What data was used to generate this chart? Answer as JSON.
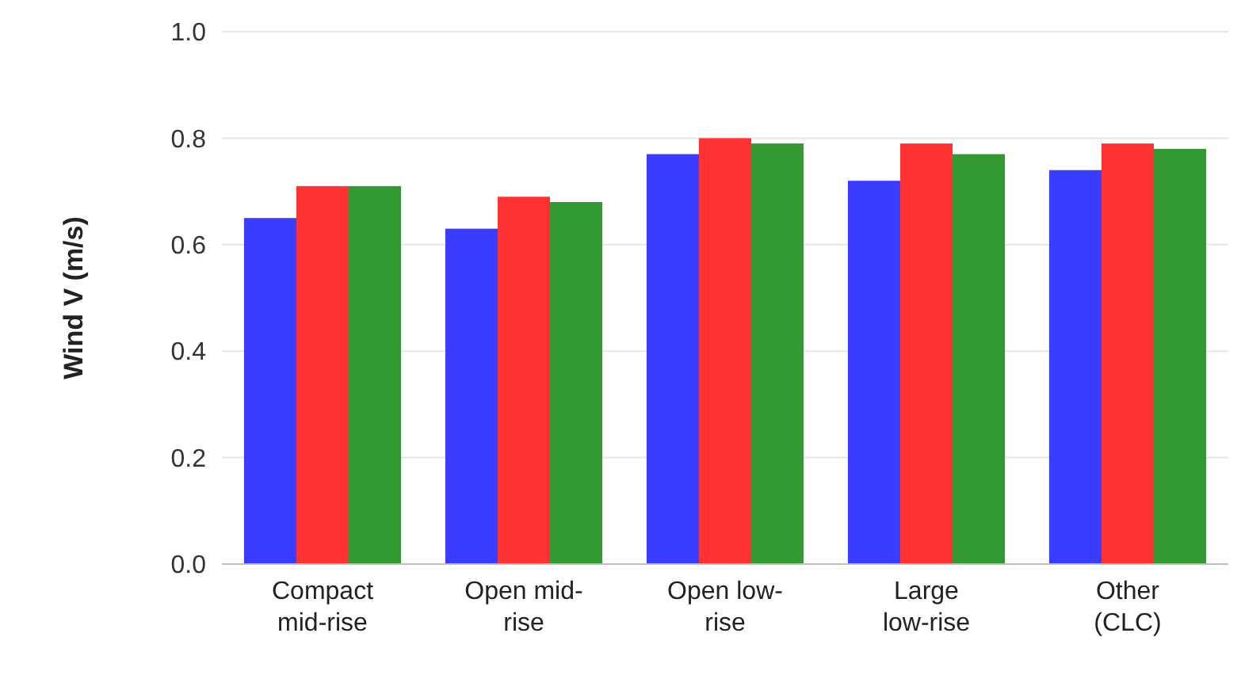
{
  "chart_data": {
    "type": "bar",
    "ylabel": "Wind V (m/s)",
    "categories": [
      "Compact mid-rise",
      "Open mid-rise",
      "Open low-rise",
      "Large low-rise",
      "Other (CLC)"
    ],
    "series": [
      {
        "color": "#3a3cff",
        "values": [
          0.65,
          0.63,
          0.77,
          0.72,
          0.74
        ]
      },
      {
        "color": "#ff3333",
        "values": [
          0.71,
          0.69,
          0.8,
          0.79,
          0.79
        ]
      },
      {
        "color": "#339933",
        "values": [
          0.71,
          0.68,
          0.79,
          0.77,
          0.78
        ]
      }
    ],
    "ylim": [
      0,
      1
    ],
    "yticks": [
      {
        "value": 0,
        "label": "0.0"
      },
      {
        "value": 0.2,
        "label": "0.2"
      },
      {
        "value": 0.4,
        "label": "0.4"
      },
      {
        "value": 0.6,
        "label": "0.6"
      },
      {
        "value": 0.8,
        "label": "0.8"
      },
      {
        "value": 1,
        "label": "1.0"
      }
    ],
    "grid": "y"
  }
}
